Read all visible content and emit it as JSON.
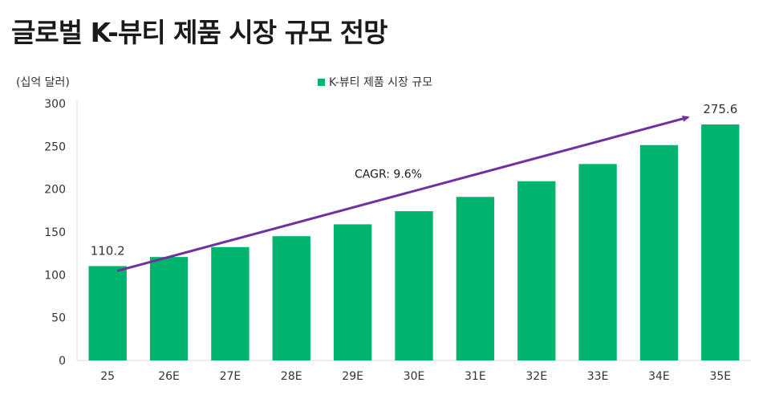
{
  "title": "글로벌 K-뷰티 제품 시장 규모 전망",
  "chart_data": {
    "type": "bar",
    "title": "글로벌 K-뷰티 제품 시장 규모 전망",
    "ylabel": "(십억 달러)",
    "xlabel": "",
    "categories": [
      "25",
      "26E",
      "27E",
      "28E",
      "29E",
      "30E",
      "31E",
      "32E",
      "33E",
      "34E",
      "35E"
    ],
    "series": [
      {
        "name": "K-뷰티 제품 시장 규모",
        "values": [
          110.2,
          120.8,
          132.4,
          145.1,
          159.0,
          174.3,
          191.0,
          209.3,
          229.4,
          251.5,
          275.6
        ]
      }
    ],
    "ylim": [
      0,
      300
    ],
    "yticks": [
      0,
      50,
      100,
      150,
      200,
      250,
      300
    ],
    "data_labels": [
      {
        "category": "25",
        "text": "110.2"
      },
      {
        "category": "35E",
        "text": "275.6"
      }
    ],
    "annotation": {
      "text": "CAGR: 9.6%",
      "type": "trend-arrow",
      "from": "25",
      "to": "35E"
    },
    "grid": false,
    "legend": "top-center",
    "colors": {
      "bar": "#00b46e",
      "arrow": "#7030a0",
      "axis": "#d9d9d9"
    }
  }
}
